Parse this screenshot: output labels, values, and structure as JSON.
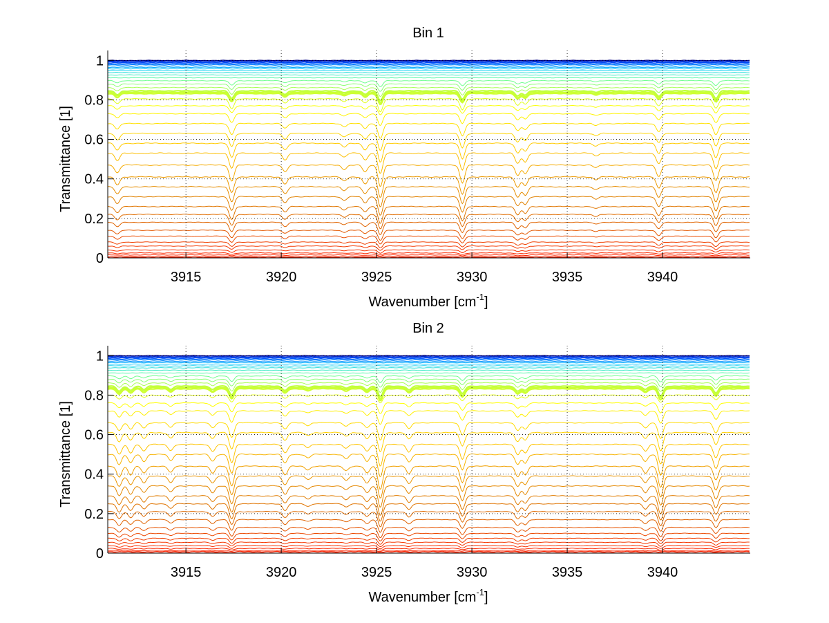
{
  "figure": {
    "background": "#ffffff"
  },
  "chart_data": [
    {
      "type": "line",
      "title": "Bin 1",
      "xlabel": "Wavenumber [cm",
      "xlabel_sup": "-1",
      "xlabel_end": "]",
      "ylabel": "Transmittance [1]",
      "xlim": [
        3910.9,
        3944.6
      ],
      "ylim": [
        0,
        1.05
      ],
      "xticks": [
        3915,
        3920,
        3925,
        3930,
        3935,
        3940
      ],
      "xtick_labels": [
        "3915",
        "3920",
        "3925",
        "3930",
        "3935",
        "3940"
      ],
      "yticks": [
        0,
        0.2,
        0.4,
        0.6,
        0.8,
        1
      ],
      "ytick_labels": [
        "0",
        "0.2",
        "0.4",
        "0.6",
        "0.8",
        "1"
      ],
      "grid": true,
      "legend": "none",
      "series_count": 44,
      "baseline_levels": [
        1.0,
        0.998,
        0.996,
        0.993,
        0.99,
        0.987,
        0.983,
        0.978,
        0.972,
        0.965,
        0.957,
        0.948,
        0.938,
        0.926,
        0.912,
        0.897,
        0.88,
        0.862,
        0.845,
        0.838,
        0.832,
        0.805,
        0.77,
        0.73,
        0.68,
        0.63,
        0.58,
        0.53,
        0.47,
        0.41,
        0.36,
        0.31,
        0.26,
        0.22,
        0.18,
        0.14,
        0.11,
        0.08,
        0.06,
        0.04,
        0.025,
        0.015,
        0.008,
        0.002
      ],
      "absorption_lines": [
        {
          "x": 3911.4,
          "depth": 0.22
        },
        {
          "x": 3917.4,
          "depth": 0.45
        },
        {
          "x": 3920.2,
          "depth": 0.2
        },
        {
          "x": 3923.3,
          "depth": 0.12
        },
        {
          "x": 3924.4,
          "depth": 0.2
        },
        {
          "x": 3925.2,
          "depth": 0.6
        },
        {
          "x": 3929.5,
          "depth": 0.5
        },
        {
          "x": 3932.4,
          "depth": 0.3
        },
        {
          "x": 3932.8,
          "depth": 0.25
        },
        {
          "x": 3936.5,
          "depth": 0.08
        },
        {
          "x": 3939.8,
          "depth": 0.32
        },
        {
          "x": 3942.8,
          "depth": 0.45
        }
      ],
      "colormap": [
        "#00008f",
        "#0050ff",
        "#00c8ff",
        "#60ff9f",
        "#c8ff37",
        "#ffff00",
        "#ffdc00",
        "#ffc800",
        "#f0a000",
        "#e08000",
        "#e06000",
        "#ff2000"
      ]
    },
    {
      "type": "line",
      "title": "Bin 2",
      "xlabel": "Wavenumber [cm",
      "xlabel_sup": "-1",
      "xlabel_end": "]",
      "ylabel": "Transmittance [1]",
      "xlim": [
        3910.9,
        3944.6
      ],
      "ylim": [
        0,
        1.05
      ],
      "xticks": [
        3915,
        3920,
        3925,
        3930,
        3935,
        3940
      ],
      "xtick_labels": [
        "3915",
        "3920",
        "3925",
        "3930",
        "3935",
        "3940"
      ],
      "yticks": [
        0,
        0.2,
        0.4,
        0.6,
        0.8,
        1
      ],
      "ytick_labels": [
        "0",
        "0.2",
        "0.4",
        "0.6",
        "0.8",
        "1"
      ],
      "grid": true,
      "legend": "none",
      "series_count": 44,
      "baseline_levels": [
        1.0,
        0.998,
        0.996,
        0.993,
        0.99,
        0.987,
        0.983,
        0.978,
        0.972,
        0.965,
        0.957,
        0.948,
        0.938,
        0.926,
        0.912,
        0.897,
        0.88,
        0.862,
        0.845,
        0.838,
        0.832,
        0.8,
        0.76,
        0.72,
        0.66,
        0.61,
        0.55,
        0.5,
        0.44,
        0.39,
        0.34,
        0.29,
        0.25,
        0.21,
        0.17,
        0.13,
        0.1,
        0.075,
        0.055,
        0.038,
        0.024,
        0.014,
        0.008,
        0.002
      ],
      "absorption_lines": [
        {
          "x": 3911.5,
          "depth": 0.3
        },
        {
          "x": 3912.1,
          "depth": 0.25
        },
        {
          "x": 3912.8,
          "depth": 0.2
        },
        {
          "x": 3914.2,
          "depth": 0.18
        },
        {
          "x": 3916.4,
          "depth": 0.2
        },
        {
          "x": 3917.4,
          "depth": 0.55
        },
        {
          "x": 3920.2,
          "depth": 0.25
        },
        {
          "x": 3921.4,
          "depth": 0.1
        },
        {
          "x": 3923.4,
          "depth": 0.12
        },
        {
          "x": 3924.5,
          "depth": 0.2
        },
        {
          "x": 3925.2,
          "depth": 0.65
        },
        {
          "x": 3926.7,
          "depth": 0.22
        },
        {
          "x": 3929.5,
          "depth": 0.45
        },
        {
          "x": 3932.4,
          "depth": 0.3
        },
        {
          "x": 3932.8,
          "depth": 0.25
        },
        {
          "x": 3939.1,
          "depth": 0.2
        },
        {
          "x": 3939.9,
          "depth": 0.6
        },
        {
          "x": 3942.8,
          "depth": 0.4
        }
      ],
      "colormap": [
        "#00008f",
        "#0050ff",
        "#00c8ff",
        "#60ff9f",
        "#c8ff37",
        "#ffff00",
        "#ffdc00",
        "#ffc800",
        "#f0a000",
        "#e08000",
        "#e06000",
        "#ff2000"
      ]
    }
  ]
}
